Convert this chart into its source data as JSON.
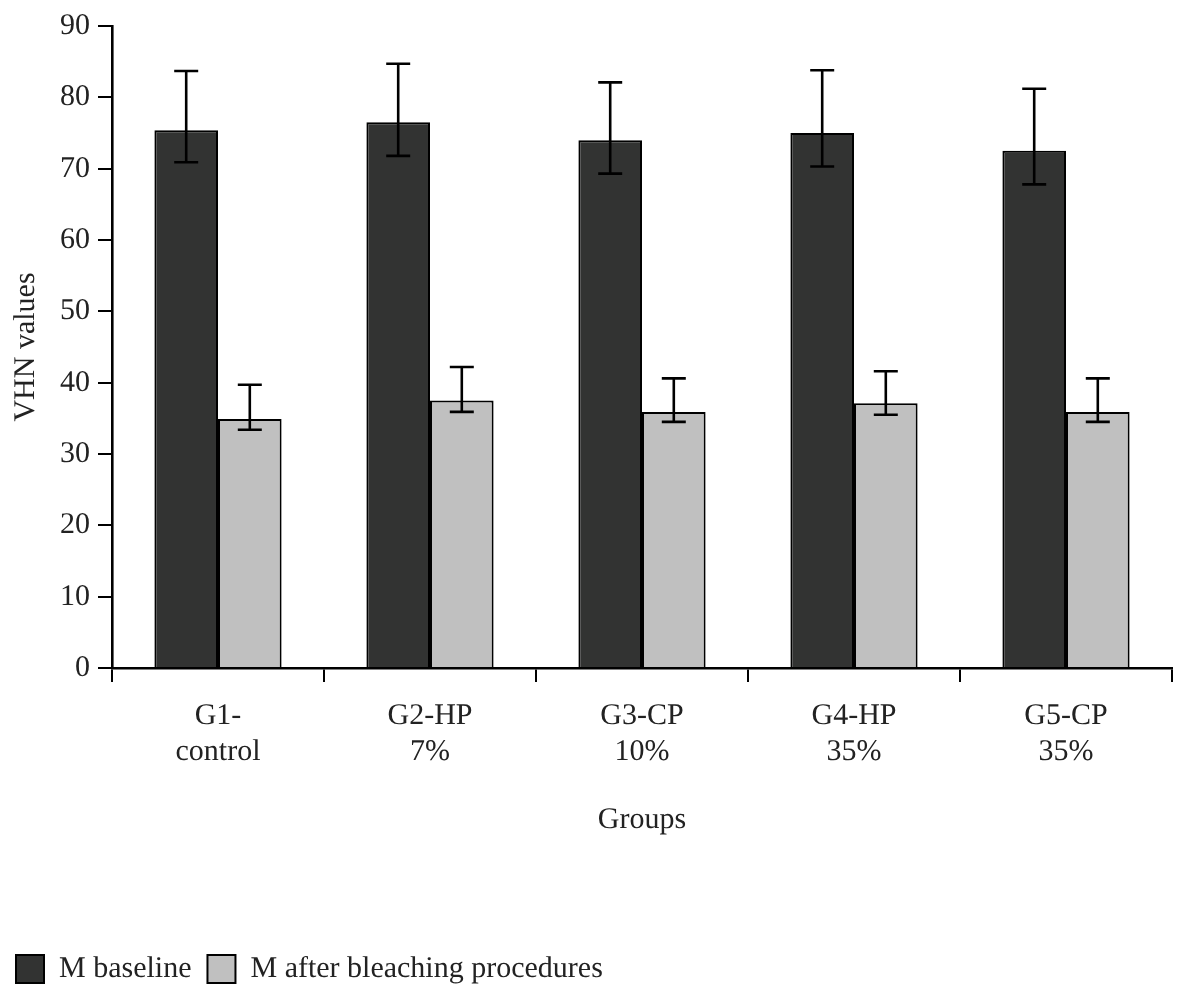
{
  "chart_data": {
    "type": "bar",
    "xlabel": "Groups",
    "ylabel": "VHN values",
    "categories": [
      "G1-\ncontrol",
      "G2-HP\n7%",
      "G3-CP\n10%",
      "G4-HP\n35%",
      "G5-CP\n35%"
    ],
    "series": [
      {
        "name": "M baseline",
        "color": "#323332",
        "values": [
          75.4,
          76.5,
          74.0,
          75.0,
          72.5
        ],
        "errors": [
          [
            70.9,
            83.7
          ],
          [
            71.8,
            84.7
          ],
          [
            69.3,
            82.1
          ],
          [
            70.3,
            83.8
          ],
          [
            67.8,
            81.2
          ]
        ]
      },
      {
        "name": "M after bleaching procedures",
        "color": "#c0c0c0",
        "values": [
          34.9,
          37.5,
          35.9,
          37.1,
          35.9
        ],
        "errors": [
          [
            33.4,
            39.7
          ],
          [
            35.9,
            42.2
          ],
          [
            34.5,
            40.6
          ],
          [
            35.5,
            41.6
          ],
          [
            34.5,
            40.6
          ]
        ]
      }
    ],
    "ylim": [
      0,
      90
    ],
    "yticks": [
      0,
      10,
      20,
      30,
      40,
      50,
      60,
      70,
      80,
      90
    ],
    "grid": false,
    "legend": "bottom"
  }
}
